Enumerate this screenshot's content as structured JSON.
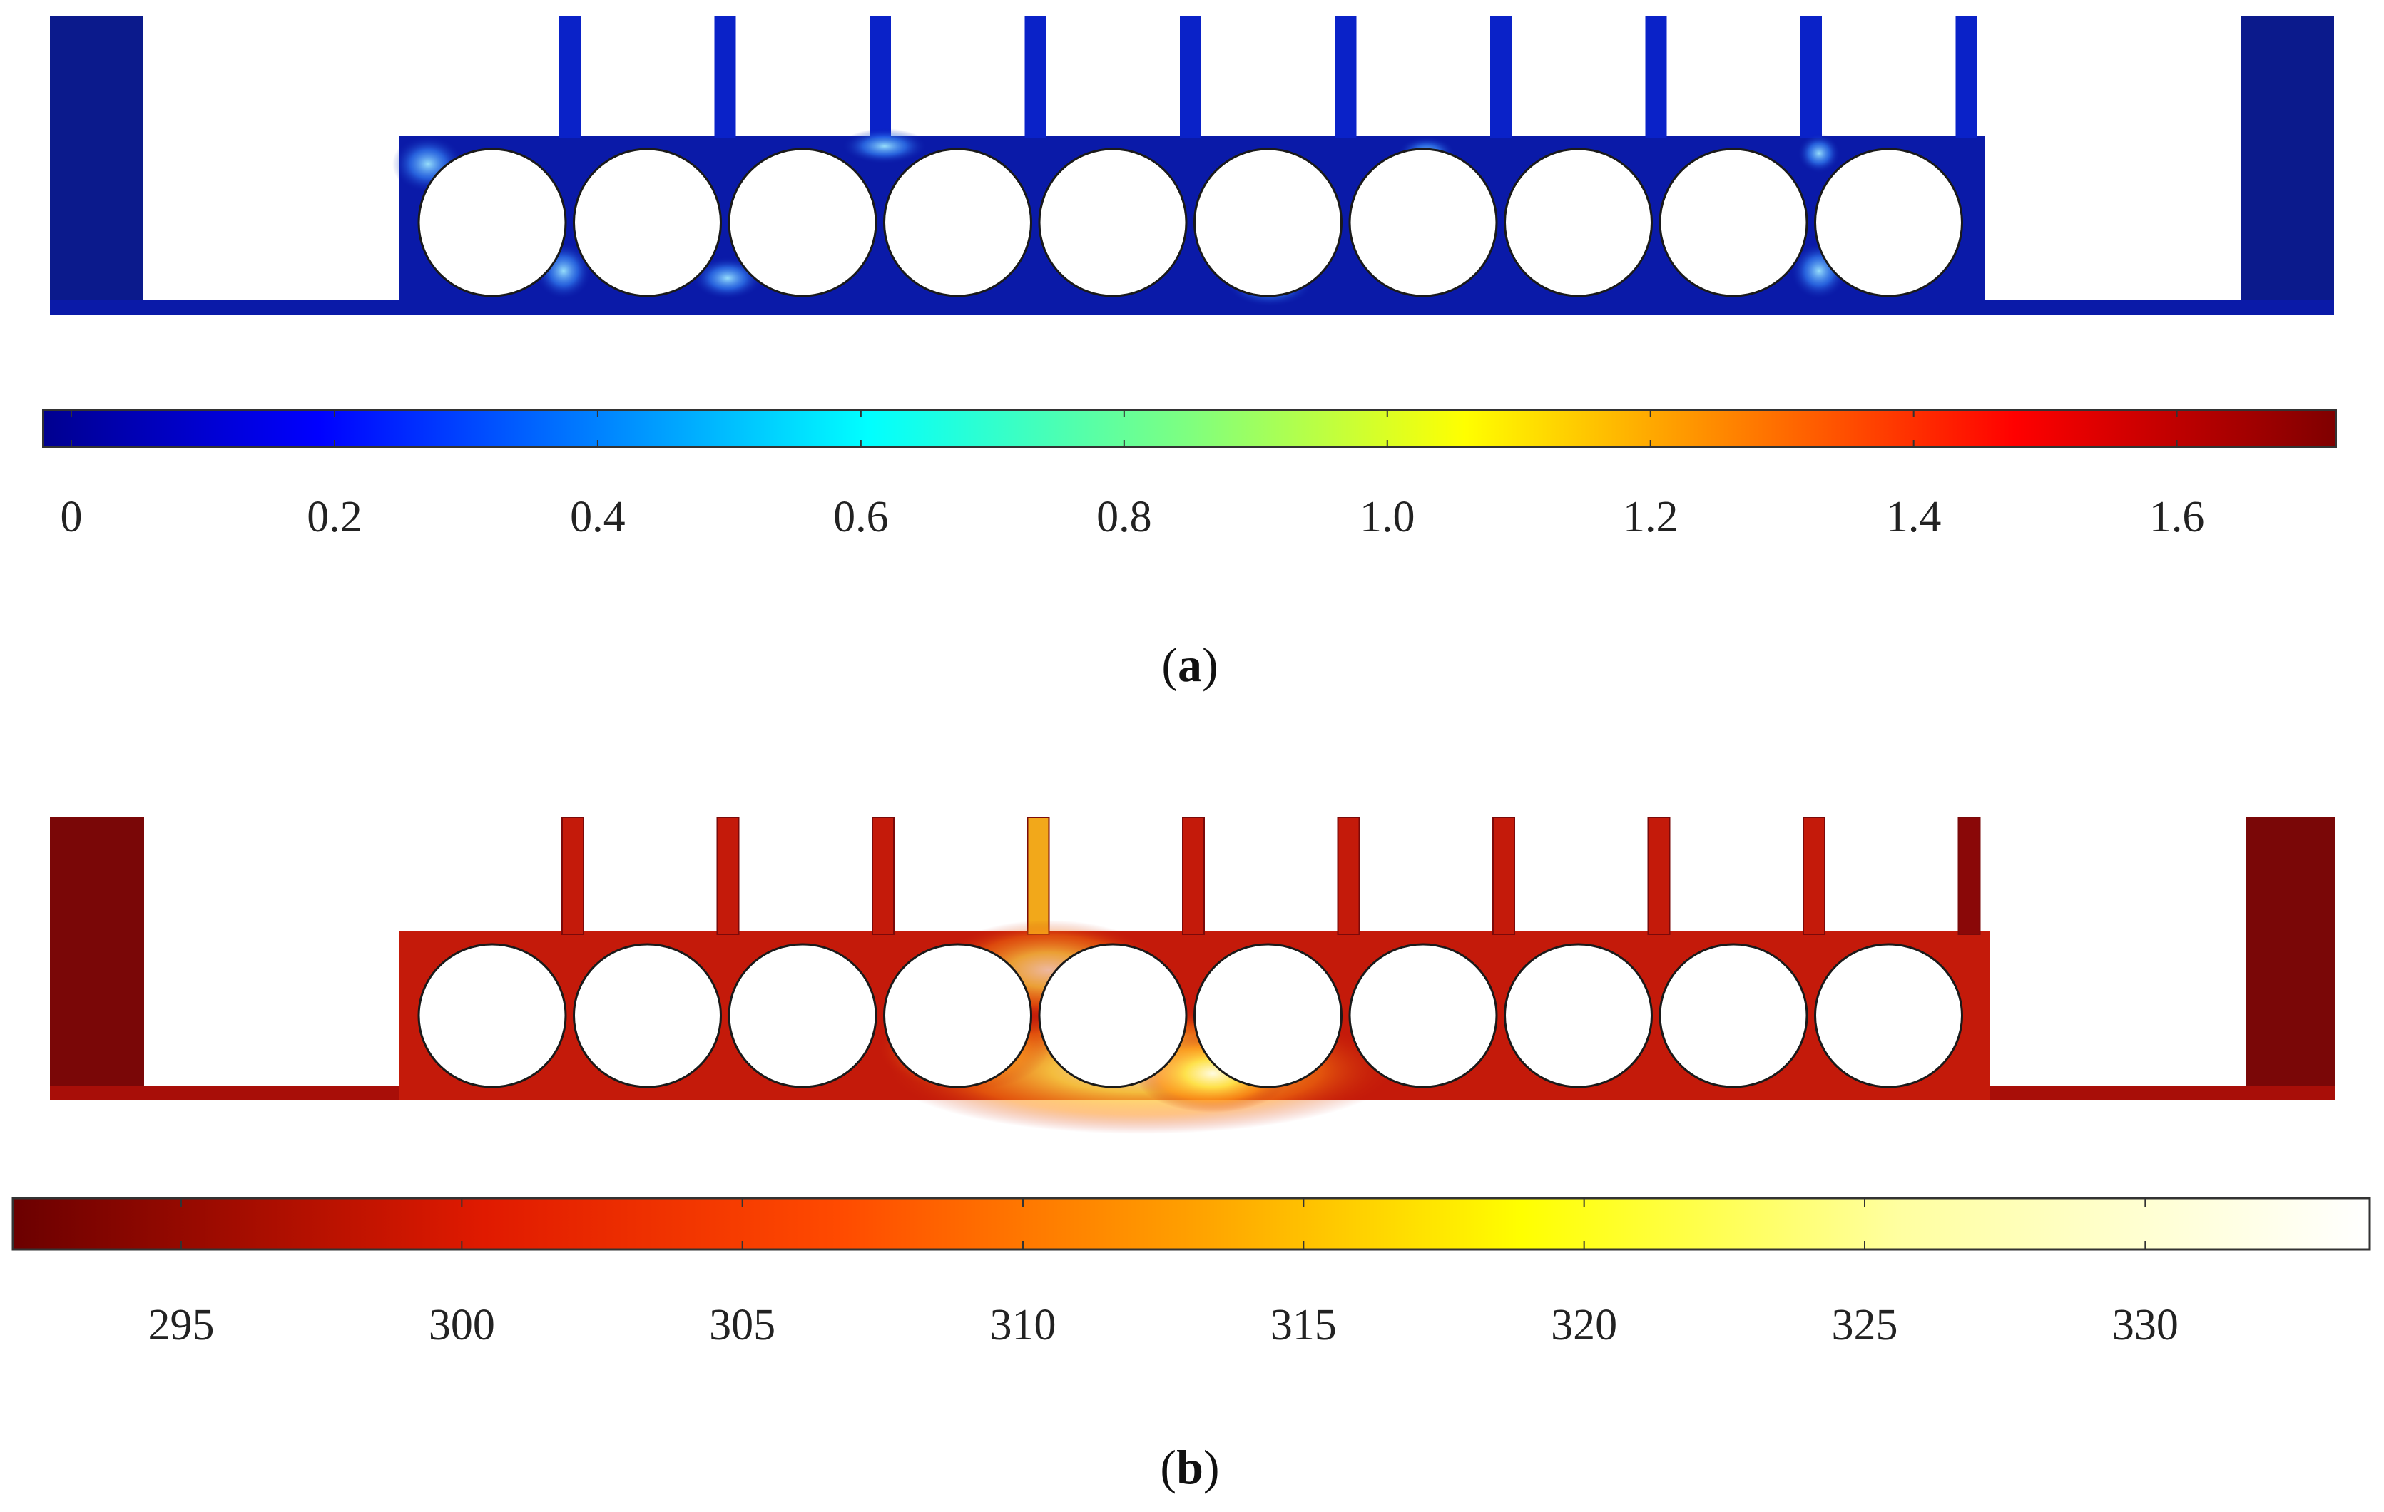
{
  "panels": [
    {
      "id": "a",
      "label_letter": "a",
      "colormap": "jet",
      "colorbar": {
        "min": 0,
        "max": 1.72,
        "ticks": [
          {
            "value": 0,
            "text": "0"
          },
          {
            "value": 0.2,
            "text": "0.2"
          },
          {
            "value": 0.4,
            "text": "0.4"
          },
          {
            "value": 0.6,
            "text": "0.6"
          },
          {
            "value": 0.8,
            "text": "0.8"
          },
          {
            "value": 1.0,
            "text": "1.0"
          },
          {
            "value": 1.2,
            "text": "1.2"
          },
          {
            "value": 1.4,
            "text": "1.4"
          },
          {
            "value": 1.6,
            "text": "1.6"
          }
        ]
      },
      "field_colors": {
        "base": "#0a1aa8",
        "highlight": "#5ab8ff",
        "hot": "#9ee8ff"
      },
      "fin_count": 10,
      "tube_count": 10,
      "side_wall_color": "#0b1a8c"
    },
    {
      "id": "b",
      "label_letter": "b",
      "colormap": "thermal",
      "colorbar": {
        "min": 292,
        "max": 334,
        "ticks": [
          {
            "value": 295,
            "text": "295"
          },
          {
            "value": 300,
            "text": "300"
          },
          {
            "value": 305,
            "text": "305"
          },
          {
            "value": 310,
            "text": "310"
          },
          {
            "value": 315,
            "text": "315"
          },
          {
            "value": 320,
            "text": "320"
          },
          {
            "value": 325,
            "text": "325"
          },
          {
            "value": 330,
            "text": "330"
          }
        ]
      },
      "field_colors": {
        "base": "#c41a0a",
        "warm": "#f2a81a",
        "hot": "#fff5c0"
      },
      "fin_count": 10,
      "tube_count": 10,
      "side_wall_color": "#7a0707"
    }
  ]
}
